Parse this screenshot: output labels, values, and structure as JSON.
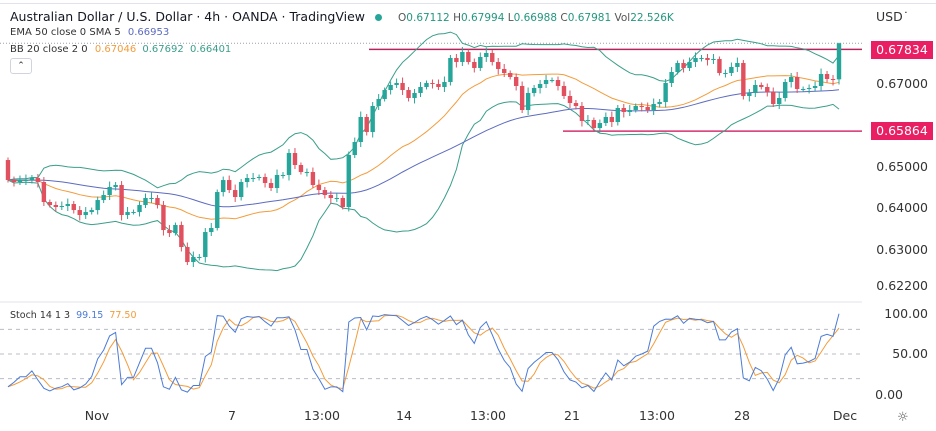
{
  "header": {
    "title": "Australian Dollar / U.S. Dollar · 4h · OANDA · TradingView",
    "ohlc": {
      "o_label": "O",
      "o": "0.67112",
      "h_label": "H",
      "h": "0.67994",
      "l_label": "L",
      "l": "0.66988",
      "c_label": "C",
      "c": "0.67981",
      "vol_label": "Vol",
      "vol": "22.526K"
    },
    "ema_label": "EMA 50 close 0 SMA 5",
    "ema_value": "0.66953",
    "bb_label": "BB 20 close 2 0",
    "bb_basis": "0.67046",
    "bb_upper": "0.67692",
    "bb_lower": "0.66401",
    "collapse_icon": "chevron-up-icon"
  },
  "price_axis": {
    "currency": "USD",
    "ticks": [
      "0.67000",
      "0.65000",
      "0.64000",
      "0.63000",
      "0.62200"
    ],
    "tags": [
      "0.67834",
      "0.65864"
    ]
  },
  "stoch": {
    "label": "Stoch 14 1 3",
    "k": "99.15",
    "d": "77.50",
    "ticks": [
      "100.00",
      "50.00",
      "0.00"
    ]
  },
  "time_axis": {
    "labels": [
      "Nov",
      "7",
      "13:00",
      "14",
      "13:00",
      "21",
      "13:00",
      "28",
      "Dec"
    ]
  },
  "colors": {
    "up": "#26a69a",
    "down": "#e0505e",
    "bb_band": "#3a9e8a",
    "bb_basis": "#f39c3c",
    "ema": "#5c6bc0",
    "stoch_k": "#4c7bd6",
    "stoch_d": "#f39c3c",
    "level": "#b5245c",
    "tag": "#e91e63"
  },
  "chart_data": {
    "type": "candlestick",
    "interval": "4h",
    "ylim": [
      0.622,
      0.682
    ],
    "levels": [
      0.67834,
      0.65864
    ],
    "last_candle": {
      "open": 0.67112,
      "high": 0.67994,
      "low": 0.66988,
      "close": 0.67981
    },
    "first_open": 0.65168,
    "close": [
      0.64686,
      0.64638,
      0.64686,
      0.64686,
      0.64735,
      0.64638,
      0.64156,
      0.64084,
      0.64036,
      0.6406,
      0.64108,
      0.63963,
      0.63843,
      0.63915,
      0.63963,
      0.64204,
      0.64325,
      0.64518,
      0.64566,
      0.63843,
      0.63915,
      0.63915,
      0.64084,
      0.64253,
      0.64253,
      0.64084,
      0.63481,
      0.63409,
      0.63602,
      0.63072,
      0.6271,
      0.62831,
      0.62831,
      0.63433,
      0.6353,
      0.64397,
      0.64686,
      0.64445,
      0.64277,
      0.64638,
      0.64735,
      0.64735,
      0.64759,
      0.64614,
      0.64494,
      0.64807,
      0.64807,
      0.65337,
      0.65048,
      0.64879,
      0.64879,
      0.64566,
      0.64445,
      0.64325,
      0.64253,
      0.64253,
      0.64036,
      0.65289,
      0.65602,
      0.66205,
      0.65843,
      0.6647,
      0.66638,
      0.66855,
      0.66976,
      0.67024,
      0.66855,
      0.66663,
      0.66783,
      0.66928,
      0.67024,
      0.67,
      0.66928,
      0.67048,
      0.67627,
      0.6753,
      0.67771,
      0.6753,
      0.67386,
      0.67651,
      0.67747,
      0.6753,
      0.67362,
      0.67265,
      0.67169,
      0.66952,
      0.66373,
      0.66783,
      0.66904,
      0.67,
      0.67096,
      0.67096,
      0.66952,
      0.66711,
      0.66542,
      0.6647,
      0.66108,
      0.66132,
      0.6594,
      0.6606,
      0.66205,
      0.66084,
      0.66422,
      0.66325,
      0.66373,
      0.6647,
      0.66446,
      0.66373,
      0.66518,
      0.66566,
      0.67024,
      0.67289,
      0.67506,
      0.67386,
      0.6753,
      0.67627,
      0.67627,
      0.67578,
      0.67603,
      0.67265,
      0.67265,
      0.6741,
      0.67506,
      0.66711,
      0.66783,
      0.66976,
      0.66928,
      0.66807,
      0.66518,
      0.66663,
      0.67048,
      0.67169,
      0.6688,
      0.6688,
      0.66904,
      0.66952,
      0.67241,
      0.6712,
      0.67096,
      0.67981
    ]
  }
}
